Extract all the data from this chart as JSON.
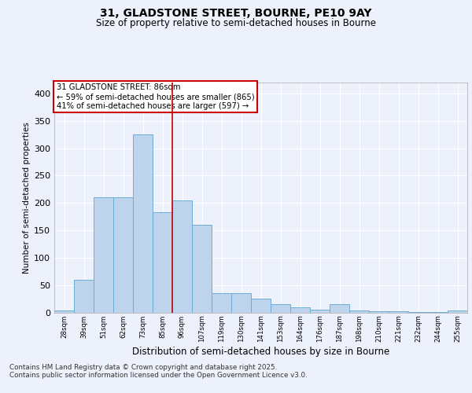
{
  "title_line1": "31, GLADSTONE STREET, BOURNE, PE10 9AY",
  "title_line2": "Size of property relative to semi-detached houses in Bourne",
  "xlabel": "Distribution of semi-detached houses by size in Bourne",
  "ylabel": "Number of semi-detached properties",
  "footnote": "Contains HM Land Registry data © Crown copyright and database right 2025.\nContains public sector information licensed under the Open Government Licence v3.0.",
  "categories": [
    "28sqm",
    "39sqm",
    "51sqm",
    "62sqm",
    "73sqm",
    "85sqm",
    "96sqm",
    "107sqm",
    "119sqm",
    "130sqm",
    "141sqm",
    "153sqm",
    "164sqm",
    "176sqm",
    "187sqm",
    "198sqm",
    "210sqm",
    "221sqm",
    "232sqm",
    "244sqm",
    "255sqm"
  ],
  "values": [
    3,
    60,
    210,
    210,
    325,
    183,
    205,
    160,
    35,
    35,
    25,
    15,
    10,
    5,
    15,
    3,
    2,
    2,
    1,
    1,
    4
  ],
  "bar_color": "#bed3ec",
  "bar_edge_color": "#6baed6",
  "vline_x": 5.5,
  "vline_color": "#cc0000",
  "annotation_title": "31 GLADSTONE STREET: 86sqm",
  "annotation_line1": "← 59% of semi-detached houses are smaller (865)",
  "annotation_line2": "41% of semi-detached houses are larger (597) →",
  "annotation_box_color": "#cc0000",
  "ylim": [
    0,
    420
  ],
  "yticks": [
    0,
    50,
    100,
    150,
    200,
    250,
    300,
    350,
    400
  ],
  "background_color": "#edf1fb",
  "plot_background": "#edf1fb",
  "grid_color": "#ffffff"
}
